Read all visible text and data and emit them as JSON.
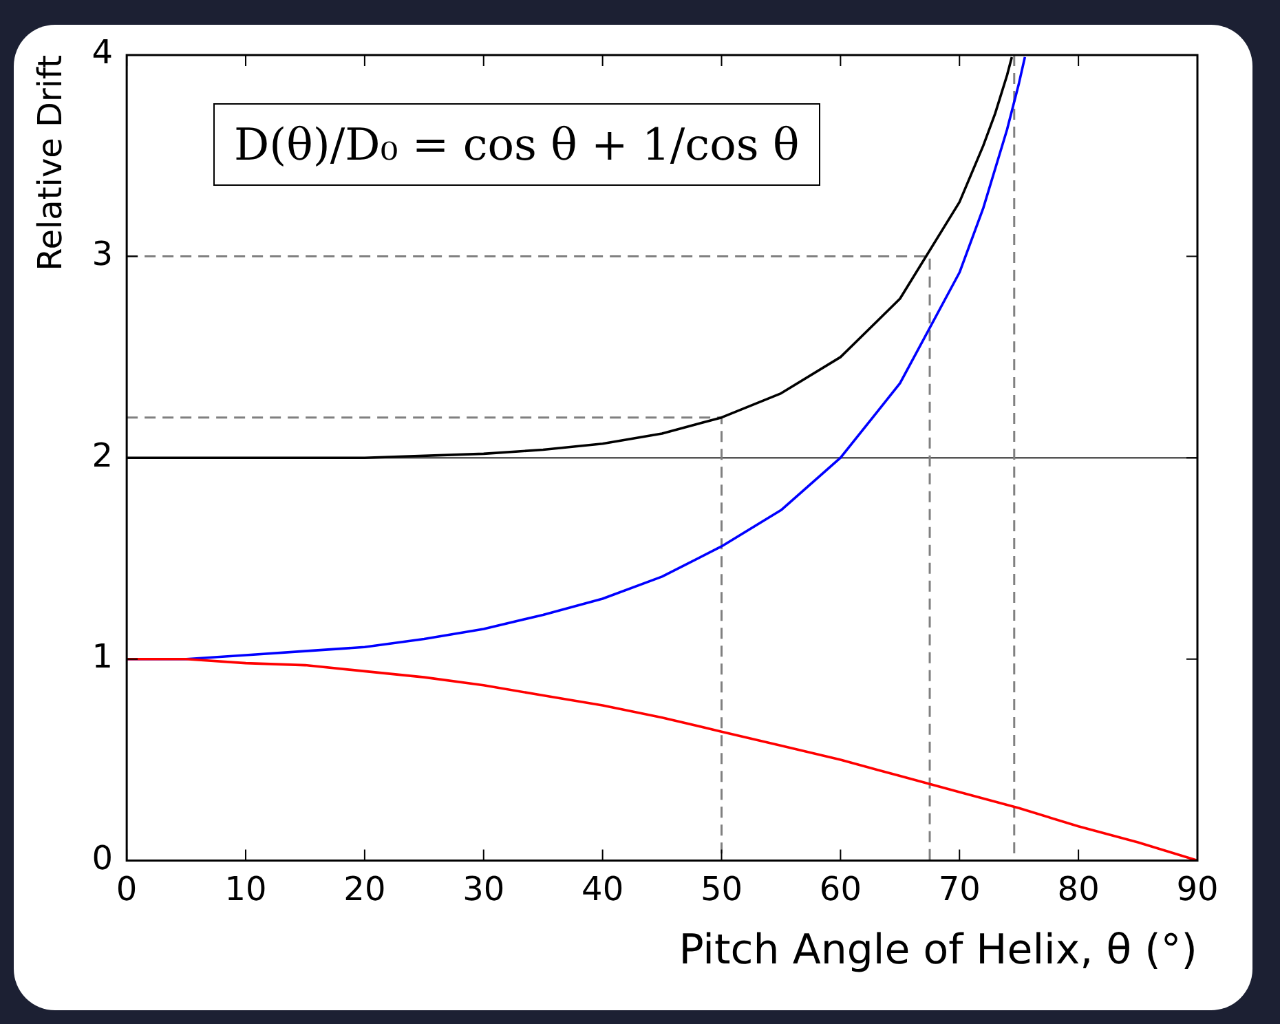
{
  "chart_data": {
    "type": "line",
    "xlabel": "Pitch Angle of Helix, θ (°)",
    "ylabel": "Relative Drift",
    "xlim": [
      0,
      90
    ],
    "xticks": [
      0,
      10,
      20,
      30,
      40,
      50,
      60,
      70,
      80,
      90
    ],
    "ylim": [
      0,
      4
    ],
    "yticks": [
      0,
      1,
      2,
      3,
      4
    ],
    "grid": false,
    "legend": false,
    "marker": "none",
    "annotations": [
      "D(θ)/D₀ = cos θ + 1/cos θ"
    ],
    "ref_lines": [
      {
        "axis": "y",
        "value": 2,
        "color": "#555555",
        "line_style": "solid"
      }
    ],
    "series": [
      {
        "color": "#ff0000",
        "x": [
          0,
          5,
          10,
          15,
          20,
          25,
          30,
          35,
          40,
          45,
          50,
          55,
          60,
          65,
          70,
          75,
          80,
          85,
          90
        ],
        "values": [
          1,
          1.0,
          0.98,
          0.97,
          0.94,
          0.91,
          0.87,
          0.82,
          0.77,
          0.71,
          0.64,
          0.57,
          0.5,
          0.42,
          0.34,
          0.26,
          0.17,
          0.09,
          0
        ]
      },
      {
        "color": "#0000ff",
        "x": [
          0,
          5,
          10,
          15,
          20,
          25,
          30,
          35,
          40,
          45,
          50,
          55,
          60,
          65,
          70,
          72,
          74,
          75,
          75.5
        ],
        "values": [
          1,
          1.0,
          1.02,
          1.04,
          1.06,
          1.1,
          1.15,
          1.22,
          1.3,
          1.41,
          1.56,
          1.74,
          2,
          2.37,
          2.92,
          3.24,
          3.63,
          3.86,
          3.99
        ]
      },
      {
        "color": "#000000",
        "x": [
          0,
          10,
          20,
          30,
          35,
          40,
          45,
          50,
          55,
          60,
          65,
          70,
          72,
          73,
          74,
          74.4
        ],
        "values": [
          2,
          2.0,
          2.0,
          2.02,
          2.04,
          2.07,
          2.12,
          2.2,
          2.32,
          2.5,
          2.79,
          3.27,
          3.55,
          3.71,
          3.9,
          3.99
        ]
      },
      {
        "color": "#808080",
        "line_style": "dashed",
        "x": [
          0,
          50,
          50
        ],
        "values": [
          2.2,
          2.2,
          0
        ]
      },
      {
        "color": "#808080",
        "line_style": "dashed",
        "x": [
          0,
          67.5,
          67.5
        ],
        "values": [
          3,
          3,
          0
        ]
      },
      {
        "color": "#808080",
        "line_style": "dashed",
        "x": [
          74.6,
          74.6
        ],
        "values": [
          4,
          0
        ]
      }
    ]
  }
}
